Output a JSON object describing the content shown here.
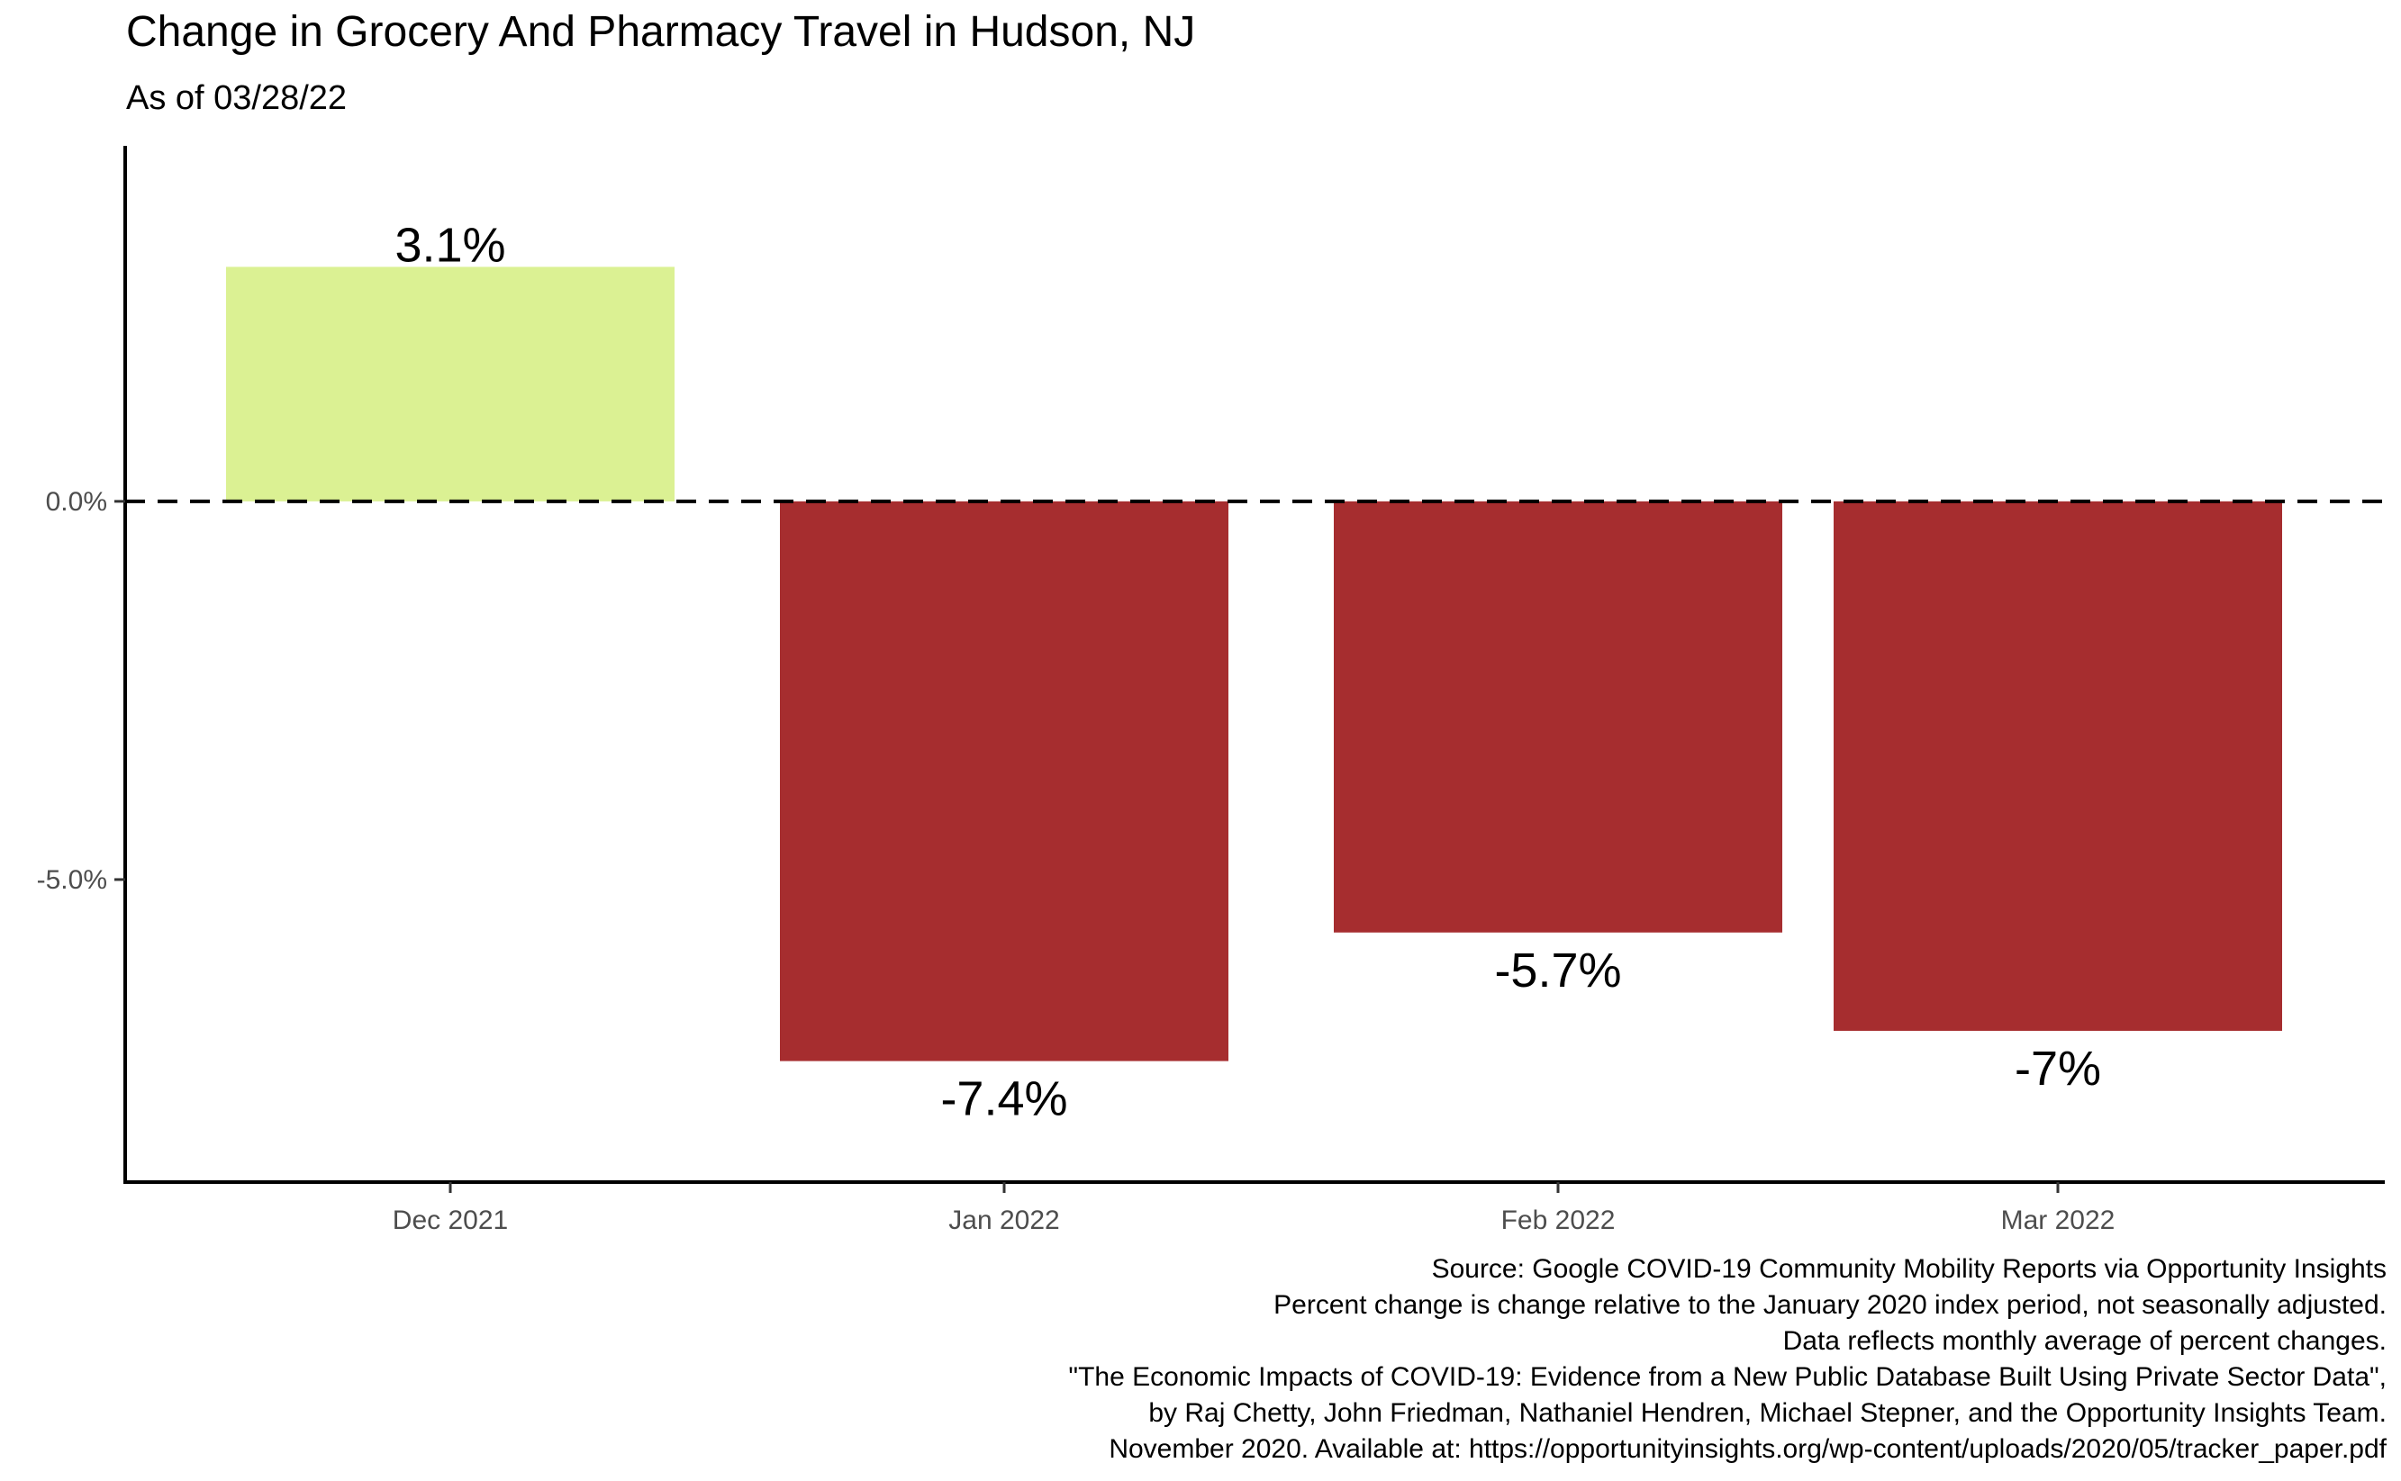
{
  "chart_data": {
    "type": "bar",
    "title": "Change in Grocery And Pharmacy Travel in Hudson, NJ",
    "subtitle": "As of 03/28/22",
    "xlabel": "",
    "ylabel": "",
    "categories": [
      "Dec 2021",
      "Jan 2022",
      "Feb 2022",
      "Mar 2022"
    ],
    "values": [
      3.1,
      -7.4,
      -5.7,
      -7.0
    ],
    "data_labels": [
      "3.1%",
      "-7.4%",
      "-5.7%",
      "-7%"
    ],
    "ylim": [
      -9.0,
      4.7
    ],
    "yticks": [
      0.0,
      -5.0
    ],
    "ytick_labels": [
      "0.0%",
      "-5.0%"
    ],
    "reference_line": 0,
    "grid": false,
    "legend": "none",
    "colors": {
      "positive": "#dbf193",
      "negative": "#a62d2f",
      "axis": "#000000",
      "tick_text": "#4d4d4d"
    }
  },
  "caption": [
    "Source: Google COVID-19 Community Mobility Reports via Opportunity Insights",
    "Percent change is change relative to the January 2020 index period, not seasonally adjusted.",
    "Data reflects monthly average of percent changes.",
    "\"The Economic Impacts of COVID-19: Evidence from a New Public Database Built Using Private Sector Data\",",
    "by Raj Chetty, John Friedman, Nathaniel Hendren, Michael Stepner, and the Opportunity Insights Team.",
    "November 2020. Available at: https://opportunityinsights.org/wp-content/uploads/2020/05/tracker_paper.pdf"
  ]
}
